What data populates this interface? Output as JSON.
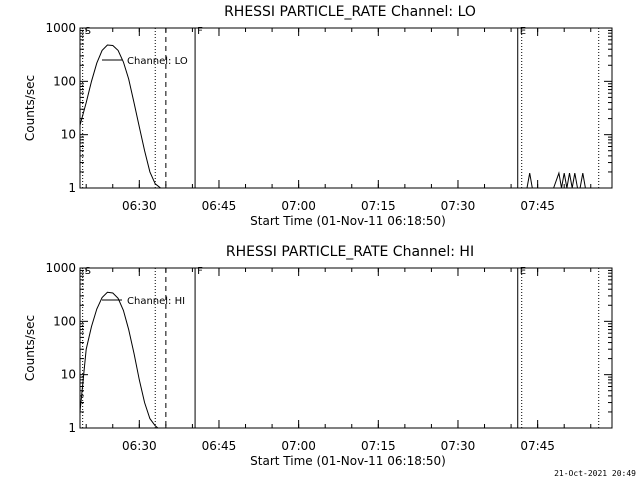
{
  "footer_timestamp": "21-Oct-2021 20:49",
  "chart_data": [
    {
      "type": "line",
      "title": "RHESSI PARTICLE_RATE Channel: LO",
      "xlabel": "Start Time (01-Nov-11 06:18:50)",
      "ylabel": "Counts/sec",
      "y_scale": "log",
      "ylim": [
        1,
        1000
      ],
      "xlim": [
        "06:18:50",
        "07:59:00"
      ],
      "x_ticks": [
        "06:30",
        "06:45",
        "07:00",
        "07:15",
        "07:30",
        "07:45"
      ],
      "y_ticks": [
        "1",
        "10",
        "100",
        "1000"
      ],
      "legend": {
        "label": "Channel: LO",
        "placement": "top-left"
      },
      "series": [
        {
          "name": "Channel: LO",
          "x": [
            "06:18:50",
            "06:20:00",
            "06:21:00",
            "06:22:00",
            "06:23:00",
            "06:24:00",
            "06:25:00",
            "06:26:00",
            "06:27:00",
            "06:28:00",
            "06:29:00",
            "06:30:00",
            "06:31:00",
            "06:32:00",
            "06:33:00",
            "06:34:00"
          ],
          "y": [
            15,
            40,
            100,
            220,
            380,
            480,
            470,
            380,
            230,
            110,
            40,
            14,
            5,
            2,
            1.2,
            1
          ]
        },
        {
          "name": "",
          "x": [
            "07:42:00",
            "07:43:00",
            "07:43:30",
            "07:44:00",
            "07:44:30",
            "07:45:00",
            "07:46:00",
            "07:47:00",
            "07:48:00",
            "07:49:00",
            "07:49:30",
            "07:50:00",
            "07:50:30",
            "07:51:00",
            "07:51:30",
            "07:52:00",
            "07:52:30",
            "07:53:00",
            "07:53:30",
            "07:54:00",
            "07:54:30",
            "07:55:00"
          ],
          "y": [
            1,
            1,
            1.9,
            1,
            1,
            1,
            1,
            1,
            1,
            1.9,
            1,
            1.9,
            1,
            1.9,
            1,
            1.9,
            1,
            1,
            1.9,
            1,
            1,
            1
          ]
        }
      ],
      "markers": [
        {
          "label": "S",
          "time": "06:19:20",
          "style": "dotted"
        },
        {
          "label": "",
          "time": "06:33:00",
          "style": "dotted"
        },
        {
          "label": "",
          "time": "06:35:00",
          "style": "dashed"
        },
        {
          "label": "F",
          "time": "06:40:30",
          "style": "solid"
        },
        {
          "label": "E",
          "time": "07:41:15",
          "style": "solid"
        },
        {
          "label": "",
          "time": "07:42:00",
          "style": "dotted"
        },
        {
          "label": "",
          "time": "07:56:30",
          "style": "dotted"
        }
      ]
    },
    {
      "type": "line",
      "title": "RHESSI PARTICLE_RATE Channel: HI",
      "xlabel": "Start Time (01-Nov-11 06:18:50)",
      "ylabel": "Counts/sec",
      "y_scale": "log",
      "ylim": [
        1,
        1000
      ],
      "xlim": [
        "06:18:50",
        "07:59:00"
      ],
      "x_ticks": [
        "06:30",
        "06:45",
        "07:00",
        "07:15",
        "07:30",
        "07:45"
      ],
      "y_ticks": [
        "1",
        "10",
        "100",
        "1000"
      ],
      "legend": {
        "label": "Channel: HI",
        "placement": "top-left"
      },
      "series": [
        {
          "name": "Channel: HI",
          "x": [
            "06:18:50",
            "06:20:00",
            "06:21:00",
            "06:22:00",
            "06:23:00",
            "06:24:00",
            "06:25:00",
            "06:26:00",
            "06:27:00",
            "06:28:00",
            "06:29:00",
            "06:30:00",
            "06:31:00",
            "06:32:00",
            "06:33:00",
            "06:33:30"
          ],
          "y": [
            2,
            30,
            80,
            170,
            280,
            350,
            340,
            270,
            160,
            70,
            25,
            8,
            3,
            1.5,
            1.1,
            1
          ]
        }
      ],
      "markers": [
        {
          "label": "S",
          "time": "06:19:20",
          "style": "dotted"
        },
        {
          "label": "",
          "time": "06:33:00",
          "style": "dotted"
        },
        {
          "label": "",
          "time": "06:35:00",
          "style": "dashed"
        },
        {
          "label": "F",
          "time": "06:40:30",
          "style": "solid"
        },
        {
          "label": "E",
          "time": "07:41:15",
          "style": "solid"
        },
        {
          "label": "",
          "time": "07:42:00",
          "style": "dotted"
        },
        {
          "label": "",
          "time": "07:56:30",
          "style": "dotted"
        }
      ]
    }
  ]
}
